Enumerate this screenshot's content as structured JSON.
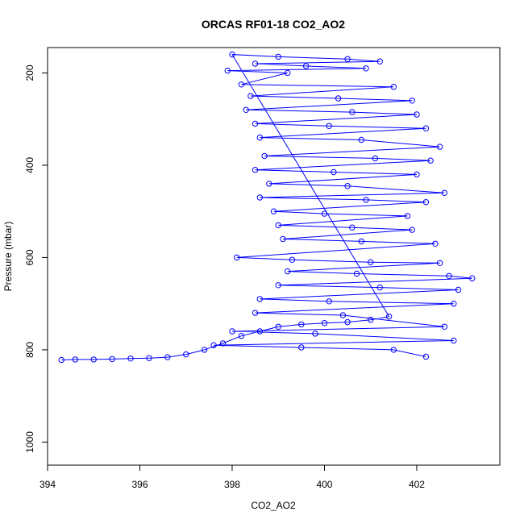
{
  "chart_data": {
    "type": "scatter",
    "title": "ORCAS RF01-18 CO2_AO2",
    "xlabel": "CO2_AO2",
    "ylabel": "Pressure (mbar)",
    "xlim": [
      394,
      403.8
    ],
    "ylim": [
      1050,
      145
    ],
    "y_reversed": true,
    "x_ticks": [
      {
        "value": 394,
        "label": "394"
      },
      {
        "value": 396,
        "label": "396"
      },
      {
        "value": 398,
        "label": "398"
      },
      {
        "value": 400,
        "label": "400"
      },
      {
        "value": 402,
        "label": "402"
      }
    ],
    "y_ticks": [
      {
        "value": 200,
        "label": "200"
      },
      {
        "value": 400,
        "label": "400"
      },
      {
        "value": 600,
        "label": "600"
      },
      {
        "value": 800,
        "label": "800"
      },
      {
        "value": 1000,
        "label": "1000"
      }
    ],
    "series": [
      {
        "color": "#0000ff",
        "marker": "open-circle",
        "line": true,
        "points": [
          [
            394.3,
            822
          ],
          [
            394.6,
            821
          ],
          [
            395.0,
            821
          ],
          [
            395.4,
            820
          ],
          [
            395.8,
            819
          ],
          [
            396.2,
            818
          ],
          [
            396.6,
            816
          ],
          [
            397.0,
            810
          ],
          [
            397.4,
            800
          ],
          [
            397.8,
            786
          ],
          [
            398.2,
            770
          ],
          [
            398.6,
            760
          ],
          [
            399.0,
            750
          ],
          [
            399.5,
            745
          ],
          [
            400.0,
            742
          ],
          [
            400.5,
            740
          ],
          [
            401.0,
            735
          ],
          [
            401.4,
            728
          ],
          [
            398.0,
            160
          ],
          [
            399.0,
            165
          ],
          [
            400.5,
            170
          ],
          [
            401.2,
            175
          ],
          [
            398.5,
            180
          ],
          [
            399.6,
            185
          ],
          [
            400.9,
            190
          ],
          [
            397.9,
            195
          ],
          [
            399.2,
            200
          ],
          [
            398.2,
            225
          ],
          [
            401.5,
            230
          ],
          [
            398.4,
            250
          ],
          [
            400.3,
            255
          ],
          [
            401.9,
            260
          ],
          [
            398.3,
            280
          ],
          [
            400.6,
            285
          ],
          [
            402.0,
            290
          ],
          [
            398.5,
            310
          ],
          [
            400.1,
            315
          ],
          [
            402.2,
            320
          ],
          [
            398.6,
            340
          ],
          [
            400.8,
            345
          ],
          [
            402.5,
            360
          ],
          [
            398.7,
            380
          ],
          [
            401.1,
            385
          ],
          [
            402.3,
            390
          ],
          [
            398.5,
            410
          ],
          [
            400.2,
            415
          ],
          [
            402.0,
            420
          ],
          [
            398.8,
            440
          ],
          [
            400.5,
            445
          ],
          [
            402.6,
            460
          ],
          [
            398.6,
            470
          ],
          [
            400.9,
            475
          ],
          [
            402.2,
            480
          ],
          [
            398.9,
            500
          ],
          [
            400.0,
            505
          ],
          [
            401.8,
            510
          ],
          [
            399.0,
            530
          ],
          [
            400.6,
            535
          ],
          [
            401.9,
            540
          ],
          [
            399.1,
            560
          ],
          [
            400.8,
            565
          ],
          [
            402.4,
            570
          ],
          [
            398.1,
            600
          ],
          [
            399.3,
            605
          ],
          [
            401.0,
            610
          ],
          [
            402.5,
            612
          ],
          [
            399.2,
            630
          ],
          [
            400.7,
            635
          ],
          [
            402.7,
            640
          ],
          [
            403.2,
            645
          ],
          [
            399.0,
            660
          ],
          [
            401.2,
            665
          ],
          [
            402.9,
            670
          ],
          [
            398.6,
            690
          ],
          [
            400.1,
            695
          ],
          [
            402.8,
            700
          ],
          [
            398.5,
            720
          ],
          [
            400.4,
            725
          ],
          [
            402.6,
            750
          ],
          [
            398.0,
            760
          ],
          [
            399.8,
            765
          ],
          [
            402.8,
            780
          ],
          [
            397.6,
            790
          ],
          [
            399.5,
            795
          ],
          [
            401.5,
            800
          ],
          [
            402.2,
            815
          ]
        ]
      }
    ]
  }
}
